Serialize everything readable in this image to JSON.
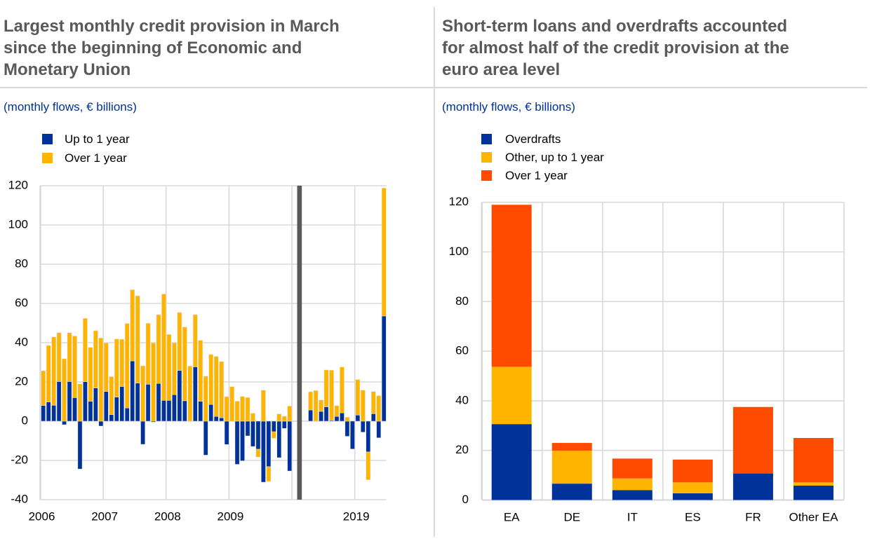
{
  "chart_data": [
    {
      "type": "bar",
      "stacked": true,
      "title": "Largest monthly credit provision in March since the beginning of Economic and Monetary Union",
      "title_lines": [
        "Largest monthly credit provision in March",
        "since the beginning of Economic and",
        "Monetary Union"
      ],
      "subtitle": "(monthly flows, € billions)",
      "xlabel": "",
      "ylabel": "",
      "ylim": [
        -40,
        120
      ],
      "yticks": [
        -40,
        -20,
        0,
        20,
        40,
        60,
        80,
        100,
        120
      ],
      "grid": true,
      "legend_position": "top-left",
      "slot_count": 66,
      "break_slot": 49,
      "break_color": "#595959",
      "x_ticks": [
        {
          "label": "2006",
          "slot": 0
        },
        {
          "label": "2007",
          "slot": 12
        },
        {
          "label": "2008",
          "slot": 24
        },
        {
          "label": "2009",
          "slot": 36
        },
        {
          "label": "2019",
          "slot": 60
        }
      ],
      "series": [
        {
          "name": "Up to 1 year",
          "color": "#003299",
          "values": [
            8.0,
            9.8,
            8.1,
            20.2,
            -1.8,
            20.2,
            12.0,
            -24.4,
            20.1,
            10.1,
            16.9,
            -2.5,
            15.1,
            3.3,
            12.3,
            17.6,
            6.7,
            30.7,
            19.4,
            -11.8,
            18.8,
            -0.5,
            19.2,
            10.6,
            10.6,
            13.5,
            25.8,
            10.4,
            0,
            27.7,
            10.1,
            -17.3,
            8.5,
            2.4,
            1.7,
            -11.9,
            0,
            -22.0,
            -20.2,
            -7.5,
            -12.9,
            -14.3,
            -31.1,
            -23.2,
            -5.4,
            -18.6,
            -3.7,
            -25.4,
            null,
            null,
            null,
            5.7,
            0,
            5.0,
            7.3,
            0.4,
            2.4,
            4.2,
            -7.7,
            -14.2,
            3.1,
            -5.6,
            -15.7,
            3.8,
            -8.5,
            53.6
          ]
        },
        {
          "name": "Over 1 year",
          "color": "#FFB400",
          "values": [
            17.7,
            28.8,
            34.8,
            24.9,
            31.8,
            24.9,
            31.4,
            19.0,
            32.3,
            27.5,
            29.2,
            42.4,
            24.8,
            19.4,
            29.6,
            24.1,
            43.1,
            36.3,
            44.5,
            28.2,
            31.1,
            39.9,
            35.1,
            54.2,
            33.6,
            26.4,
            29.6,
            37.6,
            28.1,
            26.6,
            31.1,
            22.9,
            25.5,
            30.6,
            28.7,
            12.5,
            17.6,
            10.2,
            12.6,
            12.1,
            4.0,
            -4.0,
            15.8,
            -7.5,
            -3.3,
            3.7,
            2.5,
            7.7,
            null,
            null,
            null,
            9.3,
            15.6,
            5.8,
            18.8,
            25.6,
            5.5,
            23.4,
            2.0,
            0,
            18.1,
            15.8,
            -14.2,
            11.3,
            13.0,
            65.2
          ]
        }
      ]
    },
    {
      "type": "bar",
      "stacked": true,
      "title": "Short-term loans and overdrafts accounted for almost half of the credit provision at the euro area level",
      "title_lines": [
        "Short-term loans and overdrafts accounted",
        "for almost half of the credit provision at the",
        "euro area level"
      ],
      "subtitle": "(monthly flows, € billions)",
      "xlabel": "",
      "ylabel": "",
      "ylim": [
        0,
        120
      ],
      "yticks": [
        0,
        20,
        40,
        60,
        80,
        100,
        120
      ],
      "grid": true,
      "legend_position": "top-left",
      "categories": [
        "EA",
        "DE",
        "IT",
        "ES",
        "FR",
        "Other EA"
      ],
      "series": [
        {
          "name": "Overdrafts",
          "color": "#003299",
          "values": [
            30.6,
            6.6,
            4.0,
            2.7,
            10.7,
            5.8
          ]
        },
        {
          "name": "Other, up to 1 year",
          "color": "#FFB400",
          "values": [
            23.1,
            13.3,
            4.7,
            4.4,
            0,
            1.3
          ]
        },
        {
          "name": "Over 1 year",
          "color": "#FF4B00",
          "values": [
            65.3,
            3.1,
            8.0,
            9.2,
            26.8,
            17.9
          ]
        }
      ]
    }
  ]
}
